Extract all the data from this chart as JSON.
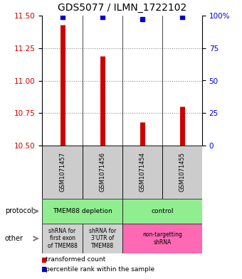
{
  "title": "GDS5077 / ILMN_1722102",
  "samples": [
    "GSM1071457",
    "GSM1071456",
    "GSM1071454",
    "GSM1071455"
  ],
  "red_values": [
    11.43,
    11.19,
    10.68,
    10.8
  ],
  "blue_values": [
    99,
    99,
    97,
    99
  ],
  "ylim": [
    10.5,
    11.5
  ],
  "yticks_left": [
    10.5,
    10.75,
    11.0,
    11.25,
    11.5
  ],
  "yticks_right": [
    0,
    25,
    50,
    75,
    100
  ],
  "ytick_labels_right": [
    "0",
    "25",
    "50",
    "75",
    "100%"
  ],
  "bar_color": "#cc0000",
  "dot_color": "#0000cc",
  "grid_color": "#888888",
  "sample_box_color": "#cccccc",
  "title_fontsize": 10,
  "tick_fontsize": 7.5,
  "proto_green": "#90EE90",
  "proto_pink": "#ff69b4",
  "other_gray": "#d0d0d0",
  "other_pink": "#ff69b4"
}
